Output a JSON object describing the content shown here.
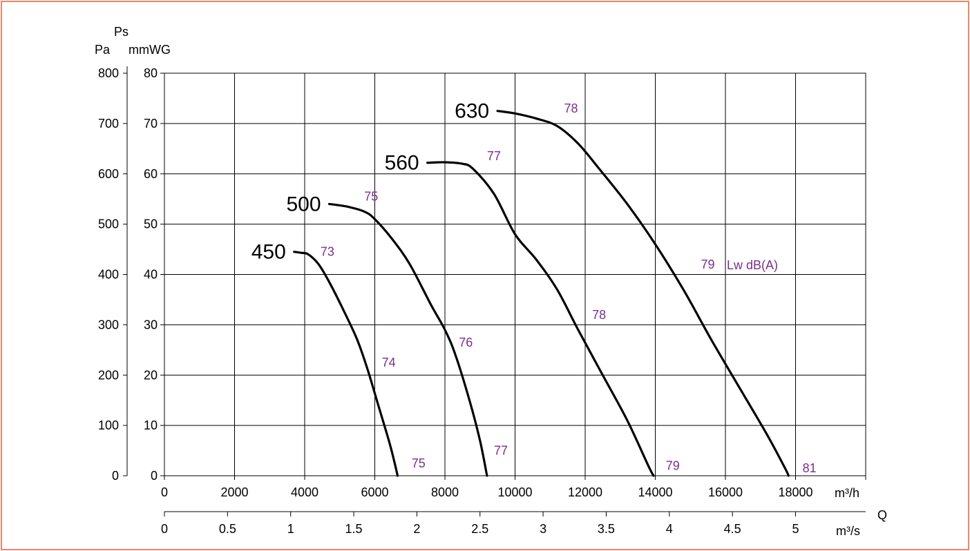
{
  "chart_data": {
    "type": "line",
    "y_axis_title": "Ps",
    "y_left_unit": "Pa",
    "y_right_unit": "mmWG",
    "x_axis_title": "Q",
    "x_top_unit": "m³/h",
    "x_bottom_unit": "m³/s",
    "x_ticks_m3h": [
      0,
      2000,
      4000,
      6000,
      8000,
      10000,
      12000,
      14000,
      16000,
      18000
    ],
    "x_ticks_m3s": [
      0,
      0.5,
      1,
      1.5,
      2,
      2.5,
      3,
      3.5,
      4,
      4.5,
      5
    ],
    "y_ticks_pa": [
      0,
      100,
      200,
      300,
      400,
      500,
      600,
      700,
      800
    ],
    "y_ticks_mmwg": [
      0,
      10,
      20,
      30,
      40,
      50,
      60,
      70,
      80
    ],
    "xlim_m3h": [
      0,
      20000
    ],
    "ylim_pa": [
      0,
      800
    ],
    "grid": true,
    "noise_unit_label": "Lw dB(A)",
    "accent_colors": {
      "curve": "#000000",
      "noise": "#7b2d8e",
      "frame": "#e0603c"
    },
    "series": [
      {
        "name": "450",
        "points": [
          [
            3700,
            445
          ],
          [
            3900,
            443
          ],
          [
            4100,
            440
          ],
          [
            4400,
            420
          ],
          [
            4700,
            385
          ],
          [
            5100,
            330
          ],
          [
            5500,
            270
          ],
          [
            5800,
            210
          ],
          [
            6100,
            140
          ],
          [
            6400,
            70
          ],
          [
            6550,
            30
          ],
          [
            6650,
            0
          ]
        ],
        "noise_labels": [
          {
            "text": "73",
            "x": 4450,
            "y": 445
          },
          {
            "text": "74",
            "x": 6200,
            "y": 225
          },
          {
            "text": "75",
            "x": 7050,
            "y": 25
          }
        ]
      },
      {
        "name": "500",
        "points": [
          [
            4700,
            540
          ],
          [
            5200,
            535
          ],
          [
            5700,
            525
          ],
          [
            6000,
            510
          ],
          [
            6500,
            470
          ],
          [
            7000,
            420
          ],
          [
            7600,
            340
          ],
          [
            8000,
            290
          ],
          [
            8300,
            240
          ],
          [
            8700,
            150
          ],
          [
            9000,
            70
          ],
          [
            9200,
            0
          ]
        ],
        "noise_labels": [
          {
            "text": "75",
            "x": 5700,
            "y": 555
          },
          {
            "text": "76",
            "x": 8400,
            "y": 265
          },
          {
            "text": "77",
            "x": 9400,
            "y": 50
          }
        ]
      },
      {
        "name": "560",
        "points": [
          [
            7500,
            622
          ],
          [
            8000,
            623
          ],
          [
            8500,
            620
          ],
          [
            8800,
            610
          ],
          [
            9400,
            560
          ],
          [
            10000,
            480
          ],
          [
            10600,
            430
          ],
          [
            11200,
            370
          ],
          [
            11800,
            290
          ],
          [
            12500,
            200
          ],
          [
            13200,
            110
          ],
          [
            13800,
            20
          ],
          [
            13950,
            0
          ]
        ],
        "noise_labels": [
          {
            "text": "77",
            "x": 9200,
            "y": 635
          },
          {
            "text": "78",
            "x": 12200,
            "y": 320
          },
          {
            "text": "79",
            "x": 14300,
            "y": 20
          }
        ]
      },
      {
        "name": "630",
        "points": [
          [
            9500,
            725
          ],
          [
            10000,
            720
          ],
          [
            10600,
            710
          ],
          [
            11200,
            695
          ],
          [
            11800,
            660
          ],
          [
            12400,
            610
          ],
          [
            13200,
            540
          ],
          [
            14000,
            460
          ],
          [
            14800,
            370
          ],
          [
            15600,
            270
          ],
          [
            16400,
            175
          ],
          [
            17200,
            80
          ],
          [
            17700,
            15
          ],
          [
            17800,
            0
          ]
        ],
        "noise_labels": [
          {
            "text": "78",
            "x": 11400,
            "y": 730
          },
          {
            "text": "79",
            "x": 15300,
            "y": 420
          },
          {
            "text": "81",
            "x": 18200,
            "y": 15
          }
        ]
      }
    ]
  }
}
